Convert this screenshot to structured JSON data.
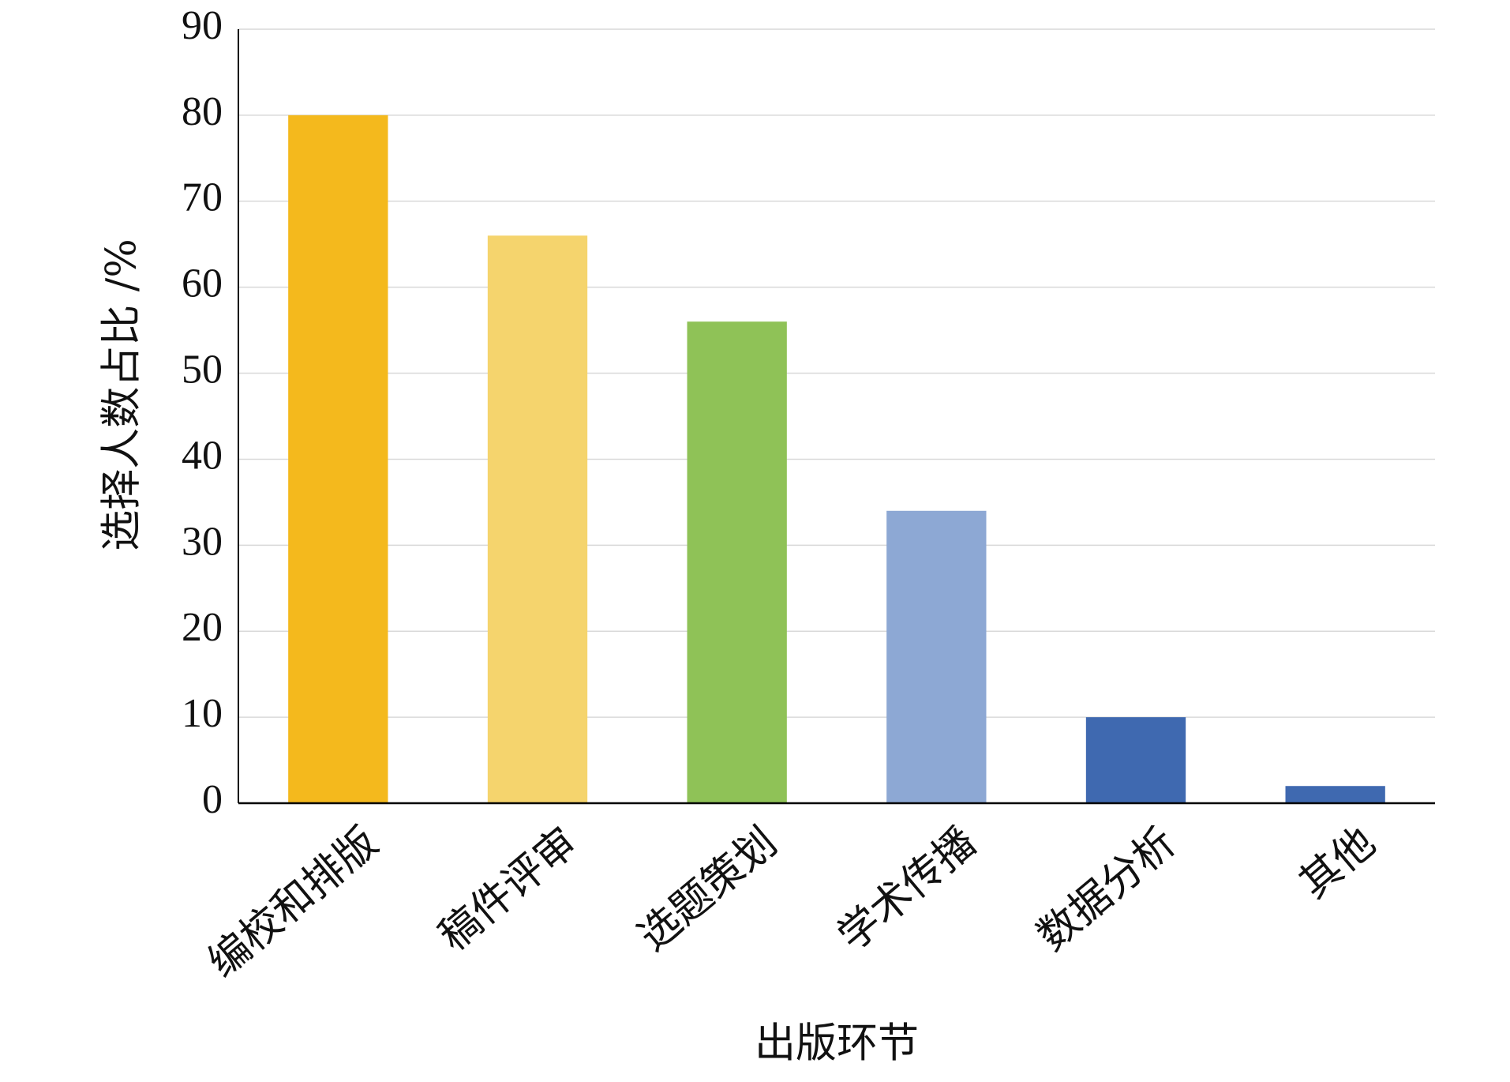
{
  "chart_data": {
    "type": "bar",
    "x_label": "出版环节",
    "y_label": "选择人数占比 /%",
    "categories": [
      "编校和排版",
      "稿件评审",
      "选题策划",
      "学术传播",
      "数据分析",
      "其他"
    ],
    "values": [
      80,
      66,
      56,
      34,
      10,
      2
    ],
    "colors": [
      "#f4b91d",
      "#f5d46d",
      "#8fc257",
      "#8da8d4",
      "#3f69b0",
      "#3f69b0"
    ],
    "ylim": [
      0,
      90
    ],
    "yticks": [
      0,
      10,
      20,
      30,
      40,
      50,
      60,
      70,
      80,
      90
    ],
    "grid": true
  }
}
